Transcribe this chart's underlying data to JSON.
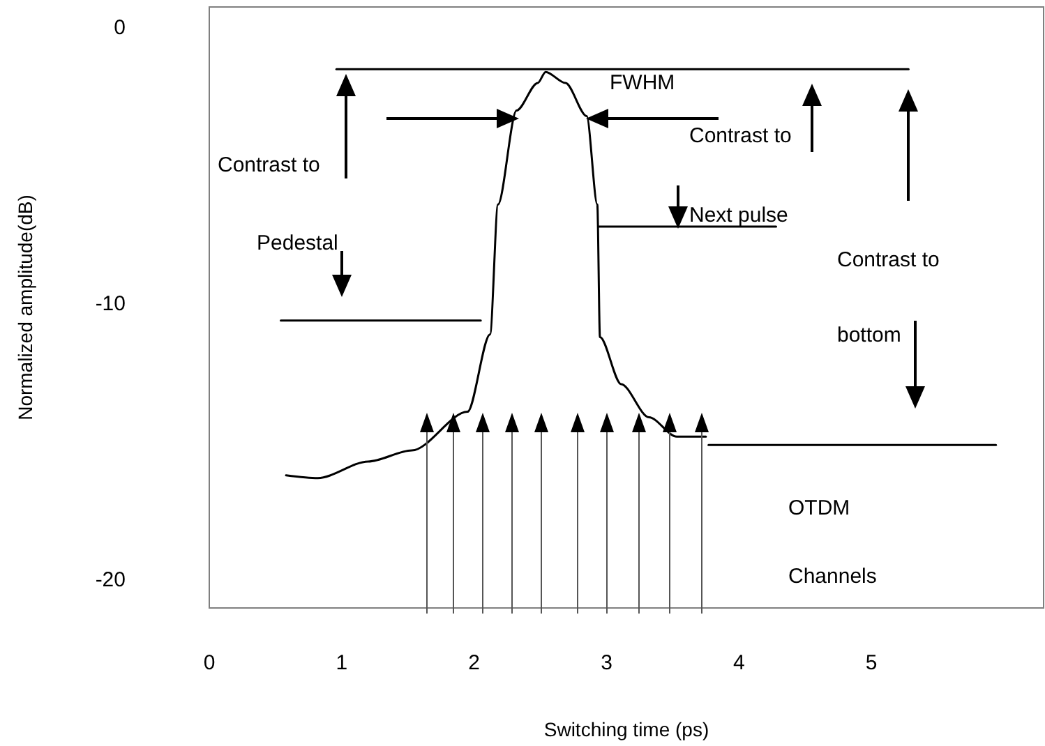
{
  "chart_data": {
    "type": "line",
    "xlabel": "Switching time (ps)",
    "ylabel": "Normalized amplitude(dB)",
    "xlim": [
      0,
      6.3
    ],
    "ylim": [
      -21,
      0.75
    ],
    "xticks": [
      0,
      1,
      2,
      3,
      4,
      5
    ],
    "yticks": [
      0,
      -10,
      -20
    ],
    "marker": "none",
    "line_style": "solid",
    "series": [
      {
        "color": "#000000",
        "x": [
          0.58,
          0.82,
          1.2,
          1.53,
          1.95,
          2.12,
          2.18,
          2.32,
          2.48,
          2.54,
          2.69,
          2.85,
          2.93,
          2.95,
          3.11,
          3.32,
          3.53,
          3.75
        ],
        "values": [
          -16.2,
          -16.3,
          -15.7,
          -15.3,
          -13.9,
          -11.1,
          -6.4,
          -3.0,
          -2.0,
          -1.6,
          -2.0,
          -3.2,
          -6.4,
          -11.2,
          -12.9,
          -14.1,
          -14.8,
          -14.8
        ]
      },
      {
        "color": "#000000",
        "x": [
          0.96,
          5.28
        ],
        "values": [
          -1.5,
          -1.5
        ]
      },
      {
        "color": "#000000",
        "x": [
          0.54,
          2.05
        ],
        "values": [
          -10.6,
          -10.6
        ]
      },
      {
        "color": "#000000",
        "x": [
          2.94,
          4.28
        ],
        "values": [
          -7.2,
          -7.2
        ]
      },
      {
        "color": "#000000",
        "x": [
          3.77,
          5.94
        ],
        "values": [
          -15.1,
          -15.1
        ]
      }
    ],
    "annotations": [
      "Contrast to",
      "Pedestal",
      "FWHM",
      "Contrast to",
      "Next pulse",
      "Contrast to",
      "bottom",
      "OTDM",
      "Channels"
    ]
  }
}
